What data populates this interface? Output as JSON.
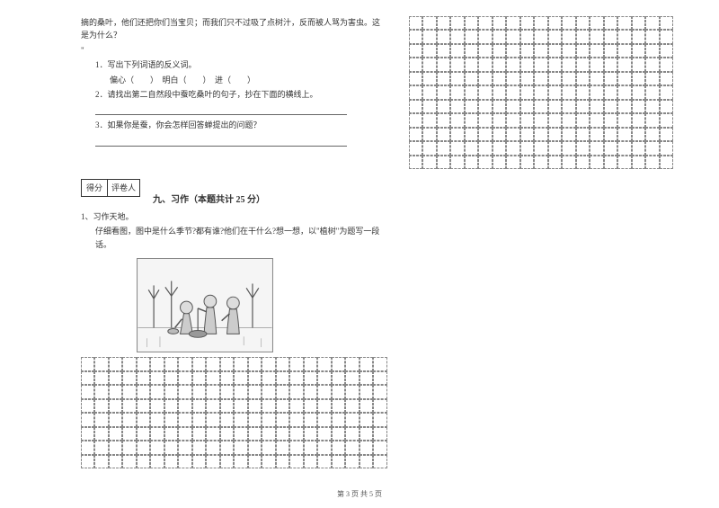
{
  "opening_text": "摘的桑叶，他们还把你们当宝贝；而我们只不过吸了点树汁，反而被人骂为害虫。这是为什么？",
  "close_quote": "\"",
  "q1": {
    "num": "1．",
    "text": "写出下列词语的反义词。",
    "items": "偏心（　　）　明白（　　）　进（　　）"
  },
  "q2": {
    "num": "2．",
    "text": "请找出第二自然段中蚕吃桑叶的句子，抄在下面的横线上。"
  },
  "q3": {
    "num": "3．",
    "text": "如果你是蚕，你会怎样回答蝉提出的问题？"
  },
  "score": {
    "score_label": "得分",
    "rater_label": "评卷人"
  },
  "section9": {
    "title": "九、习作（本题共计 25 分）"
  },
  "composition": {
    "num": "1、",
    "label": "习作天地。",
    "prompt": "仔细看图，图中是什么季节?都有谁?他们在干什么?想一想，以\"植树\"为题写一段话。"
  },
  "grid_bottom": {
    "cols": 22,
    "rows": 8
  },
  "grid_right": {
    "cols": 19,
    "rows": 11
  },
  "footer": "第 3 页 共 5 页",
  "colors": {
    "text": "#333333",
    "line": "#666666",
    "dash": "#888888",
    "bg": "#ffffff"
  }
}
